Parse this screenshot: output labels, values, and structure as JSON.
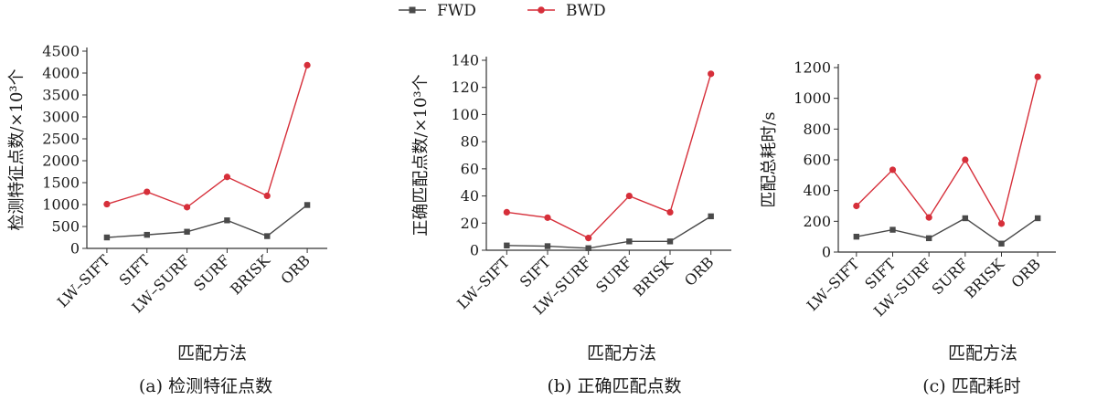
{
  "legend": [
    {
      "name": "FWD",
      "color": "#4a4a4a",
      "marker": "square"
    },
    {
      "name": "BWD",
      "color": "#d62f3a",
      "marker": "circle"
    }
  ],
  "chart_data": [
    {
      "type": "line",
      "categories": [
        "LW–SIFT",
        "SIFT",
        "LW–SURF",
        "SURF",
        "BRISK",
        "ORB"
      ],
      "series": [
        {
          "name": "FWD",
          "values": [
            250,
            310,
            380,
            640,
            280,
            990
          ]
        },
        {
          "name": "BWD",
          "values": [
            1010,
            1290,
            940,
            1630,
            1200,
            4180
          ]
        }
      ],
      "ylabel": "检测特征点数/×10³个",
      "xlabel": "匹配方法",
      "caption": "(a) 检测特征点数",
      "ylim": [
        0,
        4500
      ],
      "yticks": [
        0,
        500,
        1000,
        1500,
        2000,
        2500,
        3000,
        3500,
        4000,
        4500
      ]
    },
    {
      "type": "line",
      "categories": [
        "LW–SIFT",
        "SIFT",
        "LW–SURF",
        "SURF",
        "BRISK",
        "ORB"
      ],
      "series": [
        {
          "name": "FWD",
          "values": [
            3.5,
            3,
            1.5,
            6.5,
            6.5,
            25
          ]
        },
        {
          "name": "BWD",
          "values": [
            28,
            24,
            9,
            40,
            28,
            130
          ]
        }
      ],
      "ylabel": "正确匹配点数/×10³个",
      "xlabel": "匹配方法",
      "caption": "(b) 正确匹配点数",
      "ylim": [
        0,
        140
      ],
      "yticks": [
        0,
        20,
        40,
        60,
        80,
        100,
        120,
        140
      ]
    },
    {
      "type": "line",
      "categories": [
        "LW–SIFT",
        "SIFT",
        "LW–SURF",
        "SURF",
        "BRISK",
        "ORB"
      ],
      "series": [
        {
          "name": "FWD",
          "values": [
            100,
            145,
            90,
            220,
            55,
            220
          ]
        },
        {
          "name": "BWD",
          "values": [
            300,
            535,
            225,
            600,
            185,
            1140
          ]
        }
      ],
      "ylabel": "匹配总耗时/s",
      "xlabel": "匹配方法",
      "caption": "(c) 匹配耗时",
      "ylim": [
        0,
        1200
      ],
      "yticks": [
        0,
        200,
        400,
        600,
        800,
        1000,
        1200
      ]
    }
  ]
}
